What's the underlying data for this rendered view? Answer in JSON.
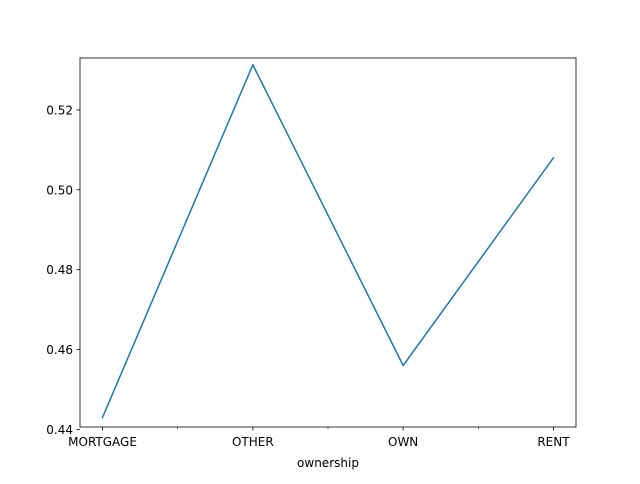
{
  "chart_data": {
    "type": "line",
    "title": "",
    "xlabel": "ownership",
    "ylabel": "",
    "categories": [
      "MORTGAGE",
      "OTHER",
      "OWN",
      "RENT"
    ],
    "series": [
      {
        "values": [
          0.443,
          0.5313,
          0.456,
          0.508
        ],
        "color": "#1f77b4"
      }
    ],
    "ylim": [
      0.4406,
      0.533
    ],
    "yticks": [
      0.44,
      0.46,
      0.48,
      0.5,
      0.52
    ],
    "ytick_labels": [
      "0.44",
      "0.46",
      "0.48",
      "0.50",
      "0.52"
    ],
    "minor_xticks": [
      0.5,
      1.5,
      2.5
    ],
    "grid": false,
    "legend": "none"
  }
}
